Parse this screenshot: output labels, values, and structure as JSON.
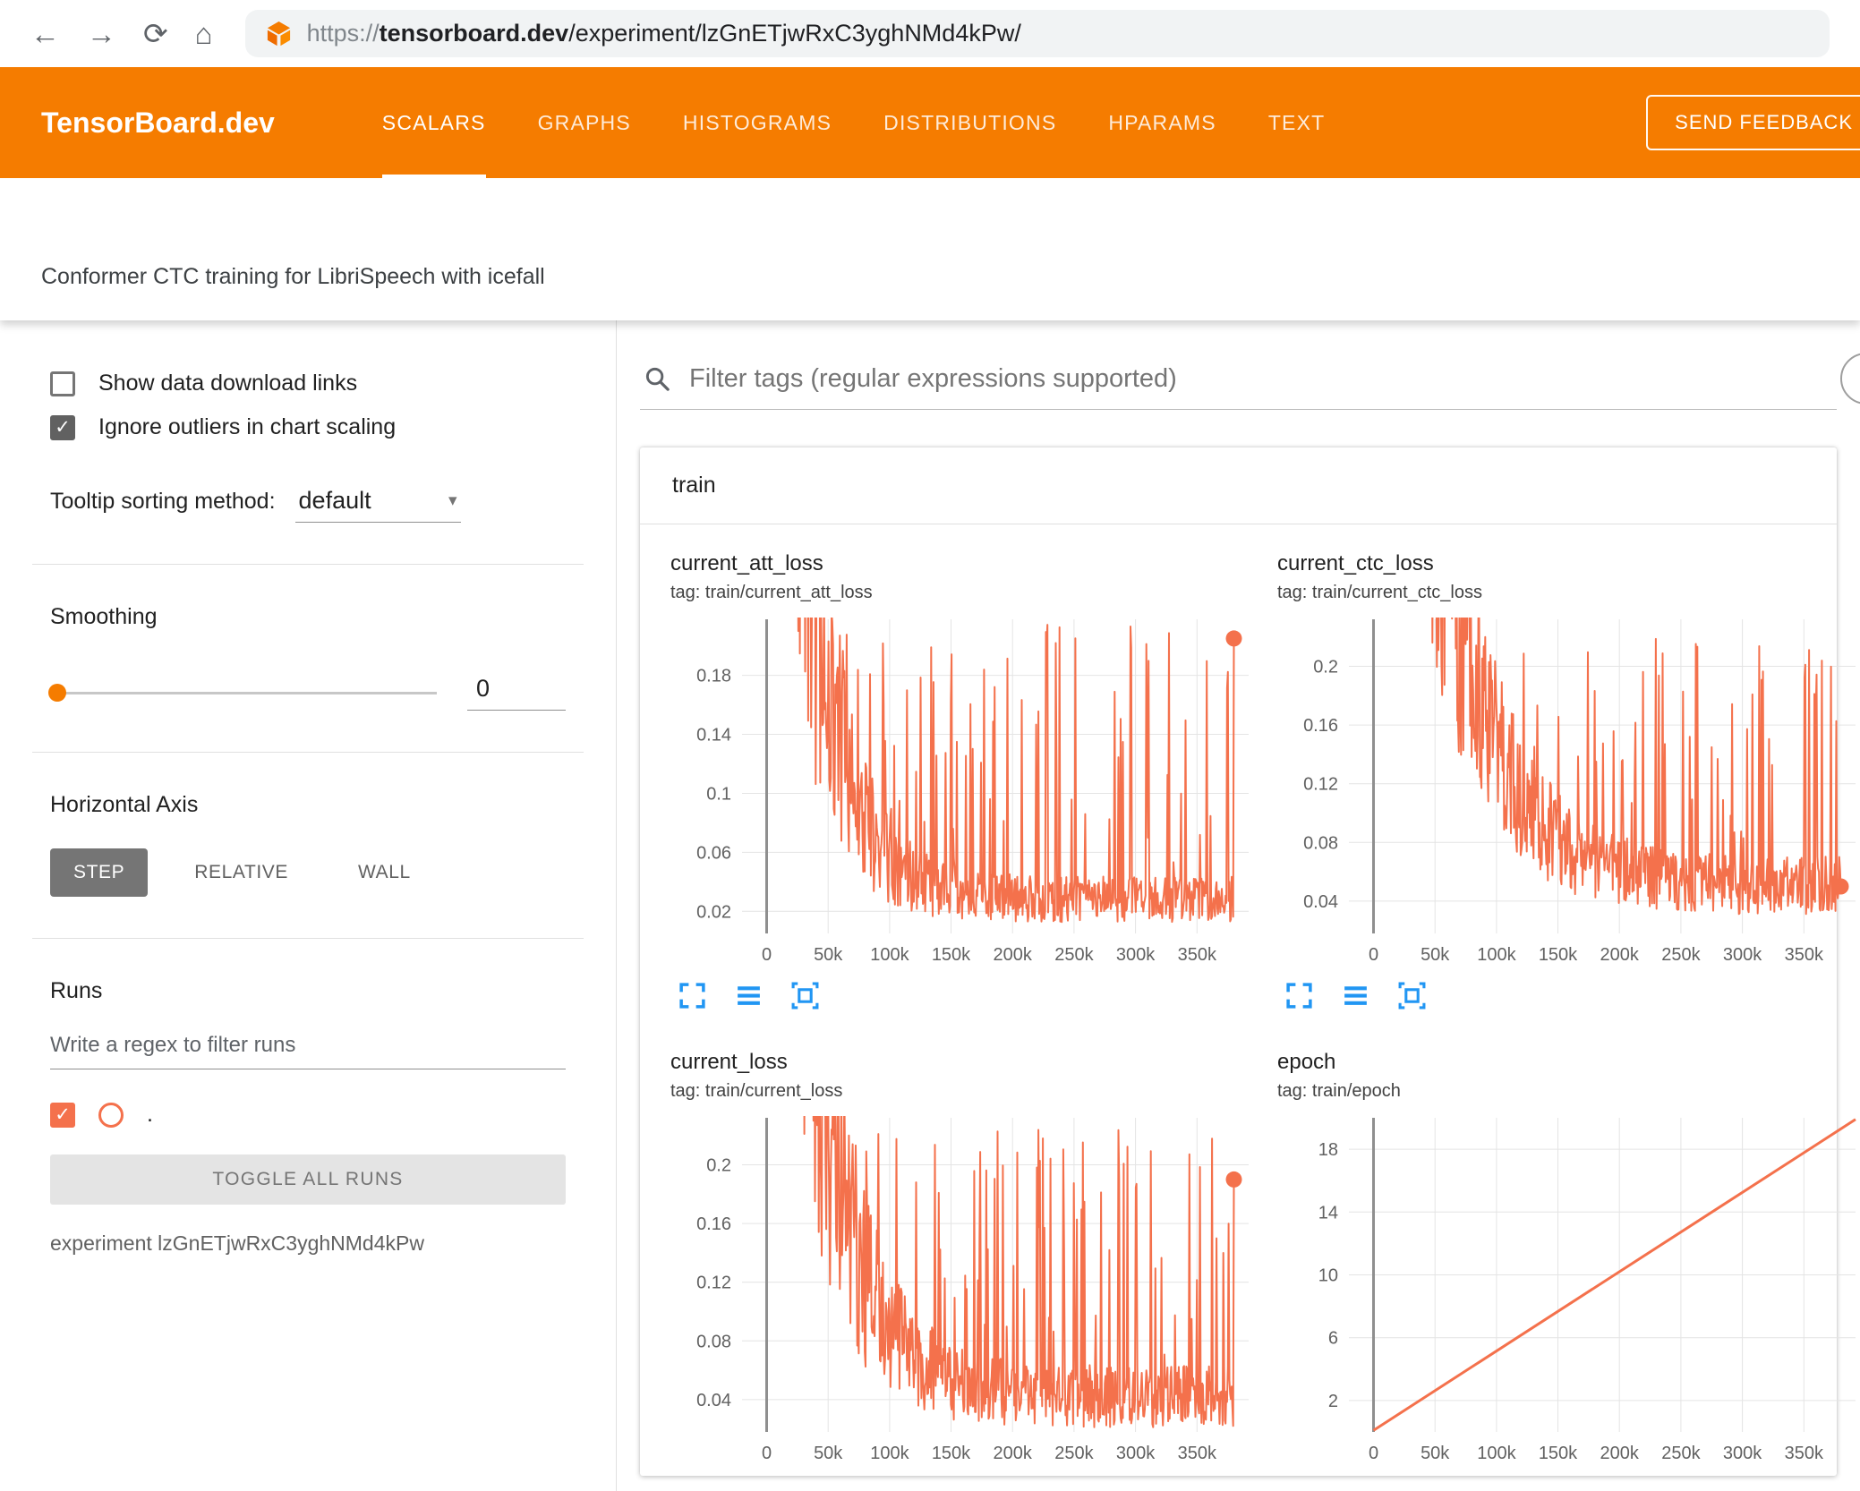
{
  "browser": {
    "url_scheme": "https://",
    "url_host": "tensorboard.dev",
    "url_path": "/experiment/lzGnETjwRxC3yghNMd4kPw/"
  },
  "icons": {
    "back": "←",
    "forward": "→",
    "reload": "⟳",
    "home": "⌂",
    "dropdown_arrow": "▾",
    "check": "✓"
  },
  "header": {
    "brand": "TensorBoard.dev",
    "tabs": [
      {
        "label": "SCALARS",
        "active": true
      },
      {
        "label": "GRAPHS",
        "active": false
      },
      {
        "label": "HISTOGRAMS",
        "active": false
      },
      {
        "label": "DISTRIBUTIONS",
        "active": false
      },
      {
        "label": "HPARAMS",
        "active": false
      },
      {
        "label": "TEXT",
        "active": false
      }
    ],
    "feedback_button": "SEND FEEDBACK"
  },
  "experiment_title": "Conformer CTC training for LibriSpeech with icefall",
  "sidebar": {
    "show_download_label": "Show data download links",
    "ignore_outliers_label": "Ignore outliers in chart scaling",
    "tooltip_sorting_label": "Tooltip sorting method:",
    "tooltip_sorting_value": "default",
    "smoothing_label": "Smoothing",
    "smoothing_value": "0",
    "horizontal_axis_label": "Horizontal Axis",
    "axis_options": [
      {
        "label": "STEP",
        "active": true
      },
      {
        "label": "RELATIVE",
        "active": false
      },
      {
        "label": "WALL",
        "active": false
      }
    ],
    "runs_label": "Runs",
    "runs_filter_placeholder": "Write a regex to filter runs",
    "run_item_label": ".",
    "toggle_all_runs_label": "TOGGLE ALL RUNS",
    "experiment_caption": "experiment lzGnETjwRxC3yghNMd4kPw"
  },
  "main": {
    "filter_placeholder": "Filter tags (regular expressions supported)",
    "group_title": "train"
  },
  "colors": {
    "header_orange": "#f57c00",
    "run_color": "#f4714c",
    "icon_blue": "#2196f3",
    "grid_line": "#e4e4e4",
    "zero_axis": "#8f8f8f"
  },
  "chart_data": [
    {
      "type": "line",
      "title": "current_att_loss",
      "tag_line": "tag: train/current_att_loss",
      "description": "Noisy training attention loss: starts above 0.2, decays to a ~0.02-0.04 floor by ~60k steps, frequent spikes up to ~0.21 across the whole 0-380k step range; last point ~0.205.",
      "x_domain": [
        -20000,
        392000
      ],
      "y_domain": [
        0.005,
        0.218
      ],
      "x_ticks": [
        0,
        50000,
        100000,
        150000,
        200000,
        250000,
        300000,
        350000
      ],
      "x_tick_labels": [
        "0",
        "50k",
        "100k",
        "150k",
        "200k",
        "250k",
        "300k",
        "350k"
      ],
      "y_ticks": [
        0.02,
        0.06,
        0.1,
        0.14,
        0.18
      ],
      "y_tick_labels": [
        "0.02",
        "0.06",
        "0.1",
        "0.14",
        "0.18"
      ],
      "end_dot": true,
      "gen": {
        "seed": 11,
        "n": 620,
        "x_max": 380000,
        "start": 0.8,
        "floor": 0.028,
        "tau": 0.08,
        "noise": 0.55,
        "spike_prob": 0.12,
        "spike_min": 0.05,
        "spike_max": 0.215,
        "end_value": 0.205
      }
    },
    {
      "type": "line",
      "title": "current_ctc_loss",
      "tag_line": "tag: train/current_ctc_loss",
      "description": "Noisy training CTC loss: starts above 0.2, decays toward a ~0.04-0.06 floor, frequent spikes up to ~0.22 across 0-380k steps; last point ~0.05.",
      "x_domain": [
        -20000,
        392000
      ],
      "y_domain": [
        0.018,
        0.232
      ],
      "x_ticks": [
        0,
        50000,
        100000,
        150000,
        200000,
        250000,
        300000,
        350000
      ],
      "x_tick_labels": [
        "0",
        "50k",
        "100k",
        "150k",
        "200k",
        "250k",
        "300k",
        "350k"
      ],
      "y_ticks": [
        0.04,
        0.08,
        0.12,
        0.16,
        0.2
      ],
      "y_tick_labels": [
        "0.04",
        "0.08",
        "0.12",
        "0.16",
        "0.2"
      ],
      "end_dot": true,
      "gen": {
        "seed": 22,
        "n": 620,
        "x_max": 380000,
        "start": 0.9,
        "floor": 0.05,
        "tau": 0.12,
        "noise": 0.4,
        "spike_prob": 0.12,
        "spike_min": 0.07,
        "spike_max": 0.225,
        "end_value": 0.05
      }
    },
    {
      "type": "line",
      "title": "current_loss",
      "tag_line": "tag: train/current_loss",
      "description": "Noisy combined training loss: starts above 0.2, decays toward a ~0.03-0.05 floor by ~70k steps, frequent spikes up to ~0.22 across 0-380k steps; last point ~0.19.",
      "x_domain": [
        -20000,
        392000
      ],
      "y_domain": [
        0.018,
        0.232
      ],
      "x_ticks": [
        0,
        50000,
        100000,
        150000,
        200000,
        250000,
        300000,
        350000
      ],
      "x_tick_labels": [
        "0",
        "50k",
        "100k",
        "150k",
        "200k",
        "250k",
        "300k",
        "350k"
      ],
      "y_ticks": [
        0.04,
        0.08,
        0.12,
        0.16,
        0.2
      ],
      "y_tick_labels": [
        "0.04",
        "0.08",
        "0.12",
        "0.16",
        "0.2"
      ],
      "end_dot": true,
      "gen": {
        "seed": 33,
        "n": 620,
        "x_max": 380000,
        "start": 0.9,
        "floor": 0.042,
        "tau": 0.09,
        "noise": 0.5,
        "spike_prob": 0.12,
        "spike_min": 0.06,
        "spike_max": 0.225,
        "end_value": 0.19
      }
    },
    {
      "type": "line",
      "title": "epoch",
      "tag_line": "tag: train/epoch",
      "description": "Epoch counter increasing linearly from 0 at step 0 to ~18 at step 350k (~19.8 at the right edge).",
      "x_domain": [
        -20000,
        392000
      ],
      "y_domain": [
        0,
        20
      ],
      "x_ticks": [
        0,
        50000,
        100000,
        150000,
        200000,
        250000,
        300000,
        350000
      ],
      "x_tick_labels": [
        "0",
        "50k",
        "100k",
        "150k",
        "200k",
        "250k",
        "300k",
        "350k"
      ],
      "y_ticks": [
        2,
        6,
        10,
        14,
        18
      ],
      "y_tick_labels": [
        "2",
        "6",
        "10",
        "14",
        "18"
      ],
      "end_dot": false,
      "points": [
        [
          0,
          0.1
        ],
        [
          392000,
          19.9
        ]
      ]
    }
  ]
}
